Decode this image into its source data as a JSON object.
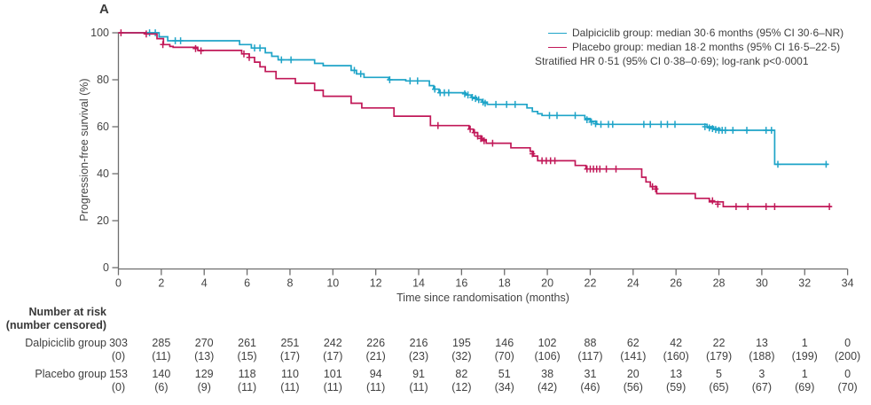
{
  "panel_label": "A",
  "colors": {
    "dalpiciclib": "#1ea4c8",
    "placebo": "#c11858",
    "axis": "#6e6e6e",
    "tick_text": "#454545",
    "table_text": "#3f3f3f"
  },
  "legend": {
    "items": [
      {
        "label": "Dalpiciclib group: median 30·6 months (95% CI 30·6–NR)",
        "color_key": "dalpiciclib"
      },
      {
        "label": "Placebo group: median 18·2 months (95% CI 16·5–22·5)",
        "color_key": "placebo"
      }
    ],
    "note": "Stratified HR 0·51 (95% CI 0·38–0·69); log-rank p<0·0001"
  },
  "chart_data": {
    "type": "line",
    "subtype": "kaplan-meier-step",
    "title": "",
    "xlabel": "Time since randomisation (months)",
    "ylabel": "Progression-free survival (%)",
    "xlim": [
      0,
      34
    ],
    "ylim": [
      0,
      100
    ],
    "xticks": [
      0,
      2,
      4,
      6,
      8,
      10,
      12,
      14,
      16,
      18,
      20,
      22,
      24,
      26,
      28,
      30,
      32,
      34
    ],
    "yticks": [
      0,
      20,
      40,
      60,
      80,
      100
    ],
    "grid": false,
    "legend_position": "top-right",
    "series": [
      {
        "name": "Dalpiciclib group",
        "color_key": "dalpiciclib",
        "end_time": 33.1,
        "steps": [
          [
            0,
            100
          ],
          [
            1.9,
            98.3
          ],
          [
            2.3,
            96.6
          ],
          [
            5.65,
            95
          ],
          [
            6.2,
            93.5
          ],
          [
            6.85,
            91.5
          ],
          [
            7.15,
            90
          ],
          [
            7.45,
            88.5
          ],
          [
            9.15,
            87
          ],
          [
            9.55,
            86
          ],
          [
            10.85,
            84
          ],
          [
            11.1,
            82.5
          ],
          [
            11.45,
            81
          ],
          [
            12.6,
            80
          ],
          [
            13.4,
            79.5
          ],
          [
            14.5,
            77.5
          ],
          [
            14.7,
            76
          ],
          [
            14.95,
            74.5
          ],
          [
            16.2,
            73.5
          ],
          [
            16.45,
            72.5
          ],
          [
            16.7,
            71.5
          ],
          [
            16.95,
            70.5
          ],
          [
            17.2,
            69.5
          ],
          [
            19.05,
            68
          ],
          [
            19.3,
            66.5
          ],
          [
            19.55,
            65.5
          ],
          [
            19.75,
            64.8
          ],
          [
            21.75,
            63.5
          ],
          [
            22.0,
            62.3
          ],
          [
            22.3,
            61
          ],
          [
            27.45,
            60
          ],
          [
            27.75,
            59.2
          ],
          [
            28.05,
            58.5
          ],
          [
            30.6,
            44
          ]
        ],
        "censors": [
          [
            1.45,
            100
          ],
          [
            1.72,
            100
          ],
          [
            2.65,
            96.6
          ],
          [
            2.9,
            96.6
          ],
          [
            6.35,
            93.5
          ],
          [
            6.6,
            93.5
          ],
          [
            7.6,
            88.5
          ],
          [
            8.05,
            88.5
          ],
          [
            11.0,
            84
          ],
          [
            11.3,
            82.5
          ],
          [
            12.65,
            80
          ],
          [
            13.6,
            79.5
          ],
          [
            13.95,
            79.5
          ],
          [
            14.75,
            76
          ],
          [
            15.0,
            74.5
          ],
          [
            15.2,
            74.5
          ],
          [
            15.4,
            74.5
          ],
          [
            16.15,
            74
          ],
          [
            16.3,
            73.5
          ],
          [
            16.5,
            72.5
          ],
          [
            16.65,
            72
          ],
          [
            16.8,
            71.5
          ],
          [
            17.0,
            70.5
          ],
          [
            17.1,
            70
          ],
          [
            17.6,
            69.5
          ],
          [
            18.1,
            69.5
          ],
          [
            18.5,
            69.5
          ],
          [
            20.1,
            64.8
          ],
          [
            20.45,
            64.8
          ],
          [
            21.3,
            64.8
          ],
          [
            21.85,
            63
          ],
          [
            22.05,
            62
          ],
          [
            22.25,
            61.3
          ],
          [
            22.5,
            61
          ],
          [
            22.85,
            61
          ],
          [
            23.05,
            61
          ],
          [
            24.5,
            61
          ],
          [
            24.8,
            61
          ],
          [
            25.3,
            61
          ],
          [
            25.6,
            61
          ],
          [
            25.95,
            61
          ],
          [
            27.35,
            60
          ],
          [
            27.55,
            59.5
          ],
          [
            27.7,
            59.2
          ],
          [
            27.85,
            58.8
          ],
          [
            28.0,
            58.5
          ],
          [
            28.15,
            58.5
          ],
          [
            28.3,
            58.5
          ],
          [
            28.65,
            58.5
          ],
          [
            29.3,
            58.5
          ],
          [
            30.2,
            58.5
          ],
          [
            30.45,
            58.5
          ],
          [
            30.75,
            44
          ],
          [
            33.0,
            44
          ]
        ]
      },
      {
        "name": "Placebo group",
        "color_key": "placebo",
        "end_time": 33.25,
        "steps": [
          [
            0,
            100
          ],
          [
            1.25,
            99.5
          ],
          [
            1.8,
            97.5
          ],
          [
            2.1,
            95
          ],
          [
            2.4,
            94.2
          ],
          [
            2.55,
            93.8
          ],
          [
            3.7,
            92.5
          ],
          [
            5.75,
            91
          ],
          [
            6.1,
            89.5
          ],
          [
            6.35,
            87.5
          ],
          [
            6.6,
            85.5
          ],
          [
            6.85,
            83.5
          ],
          [
            7.35,
            80.5
          ],
          [
            8.25,
            78.5
          ],
          [
            9.15,
            75.5
          ],
          [
            9.55,
            73
          ],
          [
            10.85,
            70
          ],
          [
            11.35,
            68
          ],
          [
            12.85,
            64.5
          ],
          [
            14.55,
            60.5
          ],
          [
            16.35,
            59
          ],
          [
            16.55,
            57.5
          ],
          [
            16.75,
            56
          ],
          [
            16.95,
            54.5
          ],
          [
            17.15,
            53
          ],
          [
            18.3,
            51
          ],
          [
            19.2,
            49.5
          ],
          [
            19.35,
            47.5
          ],
          [
            19.55,
            45.5
          ],
          [
            21.3,
            43.5
          ],
          [
            21.8,
            42
          ],
          [
            24.4,
            38.5
          ],
          [
            24.6,
            36.5
          ],
          [
            24.8,
            34.5
          ],
          [
            25.1,
            31.5
          ],
          [
            26.9,
            29.5
          ],
          [
            27.55,
            28
          ],
          [
            28.2,
            26
          ]
        ],
        "censors": [
          [
            0.12,
            100
          ],
          [
            1.3,
            99.5
          ],
          [
            2.07,
            95
          ],
          [
            3.6,
            93.3
          ],
          [
            3.85,
            92.3
          ],
          [
            5.85,
            91
          ],
          [
            6.1,
            89.5
          ],
          [
            14.9,
            60.5
          ],
          [
            16.4,
            59
          ],
          [
            16.6,
            57.5
          ],
          [
            16.75,
            56
          ],
          [
            16.9,
            55
          ],
          [
            17.05,
            54
          ],
          [
            17.45,
            53
          ],
          [
            19.3,
            48.5
          ],
          [
            19.75,
            45.5
          ],
          [
            19.95,
            45.5
          ],
          [
            20.15,
            45.5
          ],
          [
            20.35,
            45.5
          ],
          [
            21.85,
            42
          ],
          [
            22.0,
            42
          ],
          [
            22.15,
            42
          ],
          [
            22.3,
            42
          ],
          [
            22.45,
            42
          ],
          [
            22.75,
            42
          ],
          [
            23.2,
            42
          ],
          [
            24.9,
            34.5
          ],
          [
            25.05,
            33.5
          ],
          [
            27.7,
            28.5
          ],
          [
            27.95,
            27
          ],
          [
            28.8,
            26
          ],
          [
            29.35,
            26
          ],
          [
            30.2,
            26
          ],
          [
            30.6,
            26
          ],
          [
            33.15,
            26
          ]
        ]
      }
    ]
  },
  "risk_table": {
    "header_line1": "Number at risk",
    "header_line2": "(number censored)",
    "times": [
      0,
      2,
      4,
      6,
      8,
      10,
      12,
      14,
      16,
      18,
      20,
      22,
      24,
      26,
      28,
      30,
      32,
      34
    ],
    "rows": [
      {
        "label": "Dalpiciclib group",
        "at_risk": [
          303,
          285,
          270,
          261,
          251,
          242,
          226,
          216,
          195,
          146,
          102,
          88,
          62,
          42,
          22,
          13,
          1,
          0
        ],
        "censored": [
          0,
          11,
          13,
          15,
          17,
          17,
          21,
          23,
          32,
          70,
          106,
          117,
          141,
          160,
          179,
          188,
          199,
          200
        ]
      },
      {
        "label": "Placebo group",
        "at_risk": [
          153,
          140,
          129,
          118,
          110,
          101,
          94,
          91,
          82,
          51,
          38,
          31,
          20,
          13,
          5,
          3,
          1,
          0
        ],
        "censored": [
          0,
          6,
          9,
          11,
          11,
          11,
          11,
          11,
          12,
          34,
          42,
          46,
          56,
          59,
          65,
          67,
          69,
          70
        ]
      }
    ]
  }
}
